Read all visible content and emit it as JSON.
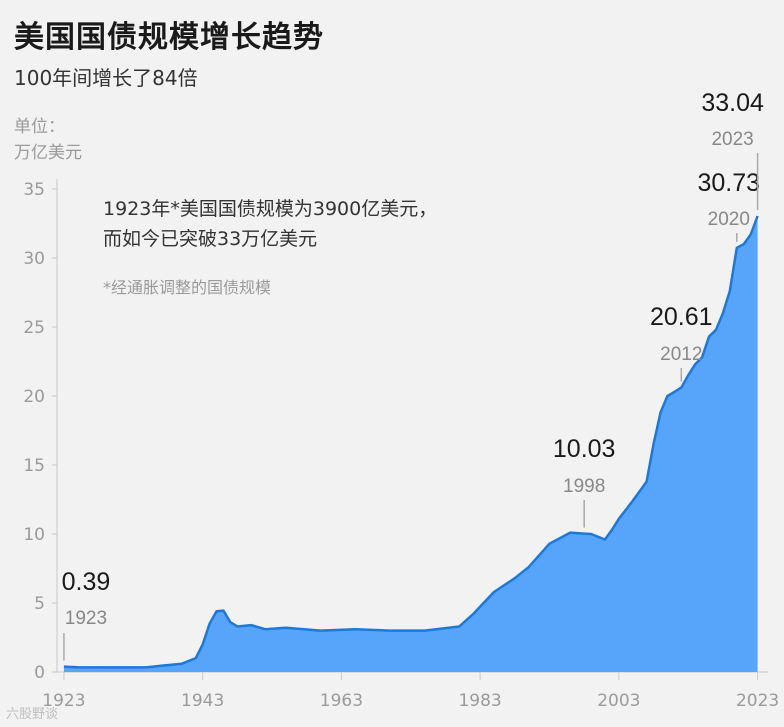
{
  "header": {
    "title": "美国国债规模增长趋势",
    "subtitle": "100年间增长了84倍",
    "unit_line1": "单位：",
    "unit_line2": "万亿美元"
  },
  "annotation": {
    "line1": "1923年*美国国债规模为3900亿美元，",
    "line2": "而如今已突破33万亿美元",
    "footnote": "*经通胀调整的国债规模"
  },
  "watermark": "六股野谈",
  "colors": {
    "area": "#56a5fb",
    "line": "#1f78d8",
    "text": "#1a1a1a",
    "muted": "#999999"
  },
  "chart_data": {
    "type": "area",
    "x": [
      1923,
      1925,
      1930,
      1935,
      1937,
      1940,
      1942,
      1943,
      1944,
      1945,
      1946,
      1947,
      1948,
      1950,
      1952,
      1955,
      1960,
      1965,
      1970,
      1975,
      1980,
      1982,
      1985,
      1988,
      1990,
      1993,
      1996,
      1998,
      1999,
      2000,
      2001,
      2002,
      2003,
      2005,
      2007,
      2008,
      2009,
      2010,
      2011,
      2012,
      2013,
      2014,
      2015,
      2016,
      2017,
      2018,
      2019,
      2020,
      2021,
      2022,
      2023
    ],
    "y": [
      0.39,
      0.35,
      0.33,
      0.34,
      0.45,
      0.6,
      1.0,
      2.0,
      3.5,
      4.4,
      4.45,
      3.6,
      3.3,
      3.4,
      3.1,
      3.2,
      3.0,
      3.1,
      3.0,
      3.0,
      3.3,
      4.2,
      5.8,
      6.8,
      7.6,
      9.3,
      10.1,
      10.03,
      10.0,
      9.8,
      9.6,
      10.3,
      11.1,
      12.4,
      13.8,
      16.5,
      18.8,
      20.0,
      20.3,
      20.61,
      21.5,
      22.3,
      22.8,
      24.3,
      24.8,
      26.0,
      27.6,
      30.73,
      31.0,
      31.7,
      33.04
    ],
    "ylim": [
      0,
      35
    ],
    "yticks": [
      0,
      5,
      10,
      15,
      20,
      25,
      30,
      35
    ],
    "xticks": [
      1923,
      1943,
      1963,
      1983,
      2003,
      2023
    ],
    "xlim": [
      1922,
      2024.5
    ],
    "grid": false,
    "callouts": [
      {
        "year": 1923,
        "value": 0.39,
        "value_label": "0.39",
        "year_label": "1923"
      },
      {
        "year": 1998,
        "value": 10.03,
        "value_label": "10.03",
        "year_label": "1998"
      },
      {
        "year": 2012,
        "value": 20.61,
        "value_label": "20.61",
        "year_label": "2012"
      },
      {
        "year": 2020,
        "value": 30.73,
        "value_label": "30.73",
        "year_label": "2020"
      },
      {
        "year": 2023,
        "value": 33.04,
        "value_label": "33.04",
        "year_label": "2023"
      }
    ]
  }
}
